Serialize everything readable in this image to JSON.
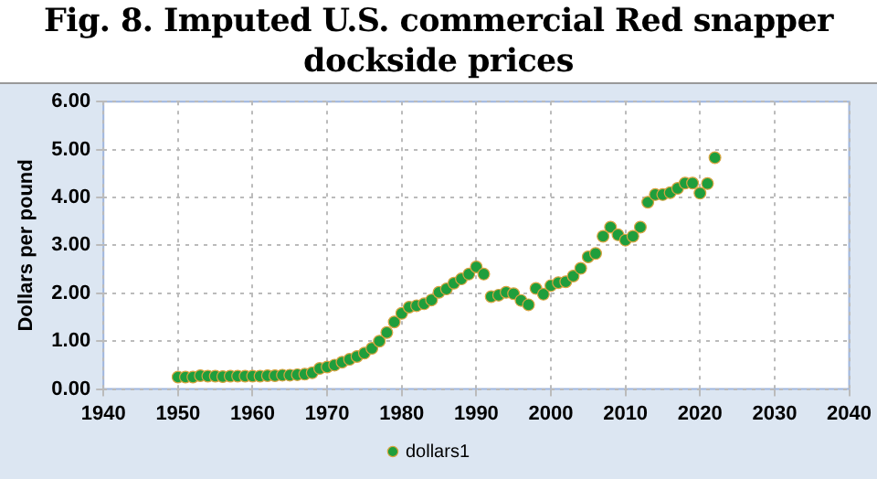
{
  "chart_data": {
    "type": "scatter",
    "title": "Fig. 8. Imputed U.S. commercial Red snapper dockside prices",
    "ylabel": "Dollars per pound",
    "x": [
      1950,
      1951,
      1952,
      1953,
      1954,
      1955,
      1956,
      1957,
      1958,
      1959,
      1960,
      1961,
      1962,
      1963,
      1964,
      1965,
      1966,
      1967,
      1968,
      1969,
      1970,
      1971,
      1972,
      1973,
      1974,
      1975,
      1976,
      1977,
      1978,
      1979,
      1980,
      1981,
      1982,
      1983,
      1984,
      1985,
      1986,
      1987,
      1988,
      1989,
      1990,
      1991,
      1992,
      1993,
      1994,
      1995,
      1996,
      1997,
      1998,
      1999,
      2000,
      2001,
      2002,
      2003,
      2004,
      2005,
      2006,
      2007,
      2008,
      2009,
      2010,
      2011,
      2012,
      2013,
      2014,
      2015,
      2016,
      2017,
      2018,
      2019,
      2020,
      2021,
      2022
    ],
    "series": [
      {
        "name": "dollars1",
        "color": "#1f9e3c",
        "values": [
          0.25,
          0.25,
          0.25,
          0.28,
          0.27,
          0.27,
          0.26,
          0.27,
          0.27,
          0.27,
          0.27,
          0.27,
          0.28,
          0.28,
          0.29,
          0.29,
          0.3,
          0.31,
          0.34,
          0.43,
          0.46,
          0.5,
          0.56,
          0.62,
          0.68,
          0.75,
          0.85,
          1.0,
          1.18,
          1.4,
          1.58,
          1.71,
          1.74,
          1.78,
          1.86,
          2.02,
          2.09,
          2.21,
          2.3,
          2.4,
          2.55,
          2.4,
          1.93,
          1.96,
          2.02,
          1.99,
          1.85,
          1.76,
          2.1,
          1.98,
          2.16,
          2.22,
          2.24,
          2.36,
          2.52,
          2.76,
          2.83,
          3.19,
          3.38,
          3.22,
          3.11,
          3.19,
          3.38,
          3.9,
          4.06,
          4.06,
          4.1,
          4.19,
          4.3,
          4.3,
          4.09,
          4.29,
          4.83
        ]
      }
    ],
    "xlim": [
      1940,
      2040
    ],
    "xticks": [
      1940,
      1950,
      1960,
      1970,
      1980,
      1990,
      2000,
      2010,
      2020,
      2030,
      2040
    ],
    "ylim": [
      0,
      6
    ],
    "yticks": [
      {
        "value": 0,
        "label": "0.00"
      },
      {
        "value": 1,
        "label": "1.00"
      },
      {
        "value": 2,
        "label": "2.00"
      },
      {
        "value": 3,
        "label": "3.00"
      },
      {
        "value": 4,
        "label": "4.00"
      },
      {
        "value": 5,
        "label": "5.00"
      },
      {
        "value": 6,
        "label": "6.00"
      }
    ],
    "grid": true,
    "legend": "bottom",
    "marker": "circle"
  }
}
